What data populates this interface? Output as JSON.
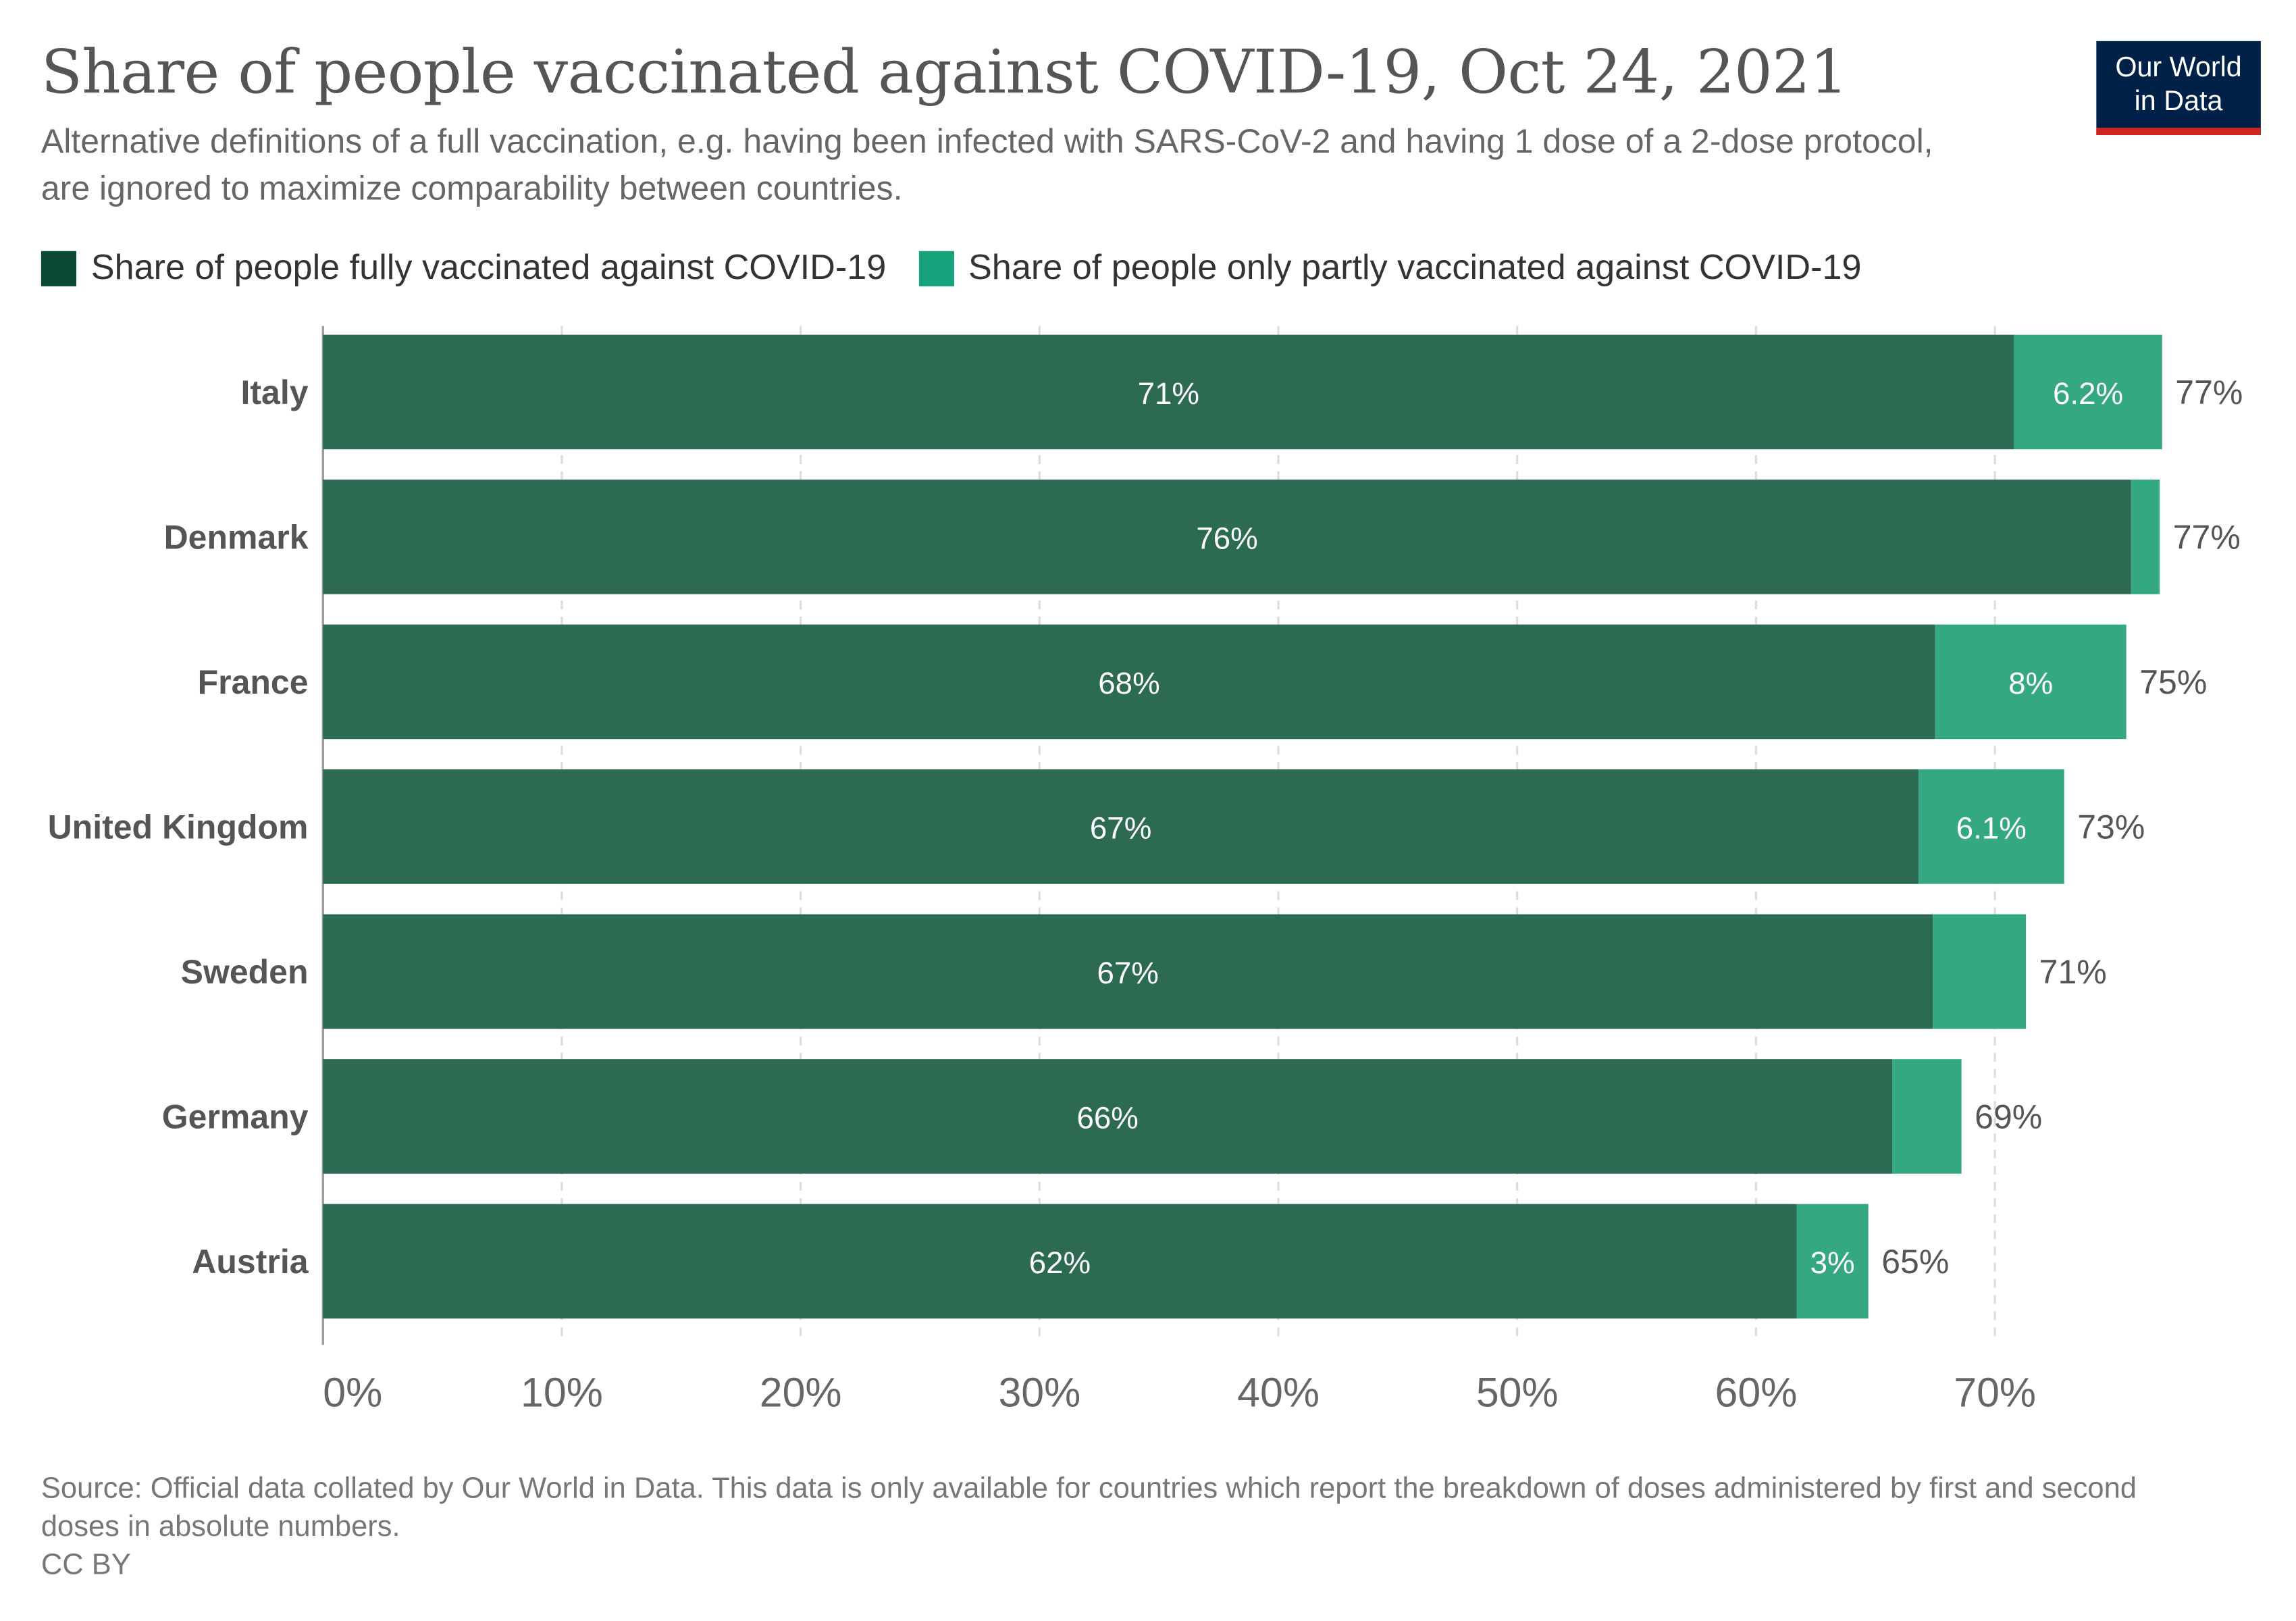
{
  "title": "Share of people vaccinated against COVID-19, Oct 24, 2021",
  "subtitle": "Alternative definitions of a full vaccination, e.g. having been infected with SARS-CoV-2 and having 1 dose of a 2-dose protocol, are ignored to maximize comparability between countries.",
  "logo": {
    "line1": "Our World",
    "line2": "in Data",
    "bg_color": "#002147",
    "accent_color": "#ce261e"
  },
  "source": "Source: Official data collated by Our World in Data. This data is only available for countries which report the breakdown of doses administered by first and second doses in absolute numbers.",
  "license": "CC BY",
  "chart_data": {
    "type": "bar",
    "orientation": "horizontal",
    "stacked": true,
    "categories": [
      "Italy",
      "Denmark",
      "France",
      "United Kingdom",
      "Sweden",
      "Germany",
      "Austria"
    ],
    "series": [
      {
        "name": "Share of people fully vaccinated against COVID-19",
        "color": "#2d6a52",
        "values": [
          70.8,
          75.7,
          67.5,
          66.8,
          67.4,
          65.7,
          61.7
        ],
        "labels": [
          "71%",
          "76%",
          "68%",
          "67%",
          "67%",
          "66%",
          "62%"
        ]
      },
      {
        "name": "Share of people only partly vaccinated against COVID-19",
        "color": "#34a882",
        "values": [
          6.2,
          1.2,
          8.0,
          6.1,
          3.9,
          2.9,
          3.0
        ],
        "labels": [
          "6.2%",
          "",
          "8%",
          "6.1%",
          "",
          "",
          "3%"
        ]
      }
    ],
    "totals": [
      "77%",
      "77%",
      "75%",
      "73%",
      "71%",
      "69%",
      "65%"
    ],
    "xlim": [
      0,
      77
    ],
    "xticks": [
      0,
      10,
      20,
      30,
      40,
      50,
      60,
      70
    ],
    "xtick_labels": [
      "0%",
      "10%",
      "20%",
      "30%",
      "40%",
      "50%",
      "60%",
      "70%"
    ],
    "legend_colors": [
      "#0a4a35",
      "#16a27a"
    ],
    "grid": true,
    "legend_position": "top-left"
  }
}
